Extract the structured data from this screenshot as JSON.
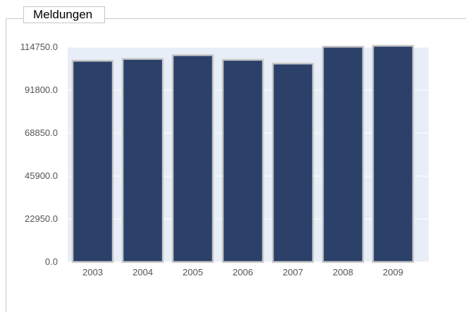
{
  "legend": {
    "label": "Meldungen"
  },
  "chart_data": {
    "type": "bar",
    "categories": [
      "2003",
      "2004",
      "2005",
      "2006",
      "2007",
      "2008",
      "2009"
    ],
    "values": [
      107500,
      108500,
      110500,
      108000,
      106000,
      115000,
      115500
    ],
    "series": [
      {
        "name": "Meldungen",
        "values": [
          107500,
          108500,
          110500,
          108000,
          106000,
          115000,
          115500
        ]
      }
    ],
    "yticks": [
      "0.0",
      "22950.0",
      "45900.0",
      "68850.0",
      "91800.0",
      "114750.0"
    ],
    "ylim": [
      0,
      114750
    ],
    "grid": true,
    "legend_position": "top-left",
    "colors": {
      "bar": "#2b4169",
      "bar_border": "#c8c8c8",
      "plot_bg": "#e8eef7",
      "grid": "#ffffff"
    }
  }
}
